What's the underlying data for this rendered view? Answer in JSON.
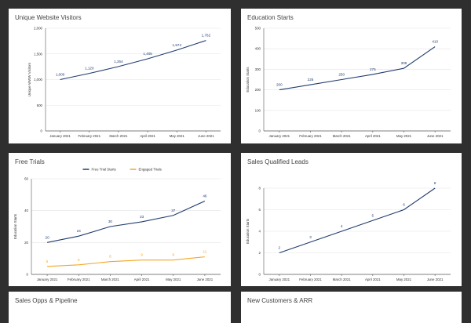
{
  "chart_data": [
    {
      "type": "line",
      "title": "Unique Website Visitors",
      "xlabel": "",
      "ylabel": "Unique WWW Visitors",
      "categories": [
        "January 2021",
        "February 2021",
        "March 2021",
        "April 2021",
        "May 2021",
        "June 2021"
      ],
      "series": [
        {
          "name": "Unique WWW Visitors",
          "values": [
            1000,
            1120,
            1254,
            1405,
            1574,
            1762
          ],
          "labels": [
            "1,000",
            "1,120",
            "1,254",
            "1,405",
            "1,574",
            "1,762"
          ],
          "color": "#1f3b6f"
        }
      ],
      "ylim": [
        0,
        2000
      ],
      "yticks": [
        0,
        500,
        1000,
        1500,
        2000
      ],
      "ytick_labels": [
        "0",
        "500",
        "1,000",
        "1,500",
        "2,000"
      ],
      "legend": false
    },
    {
      "type": "line",
      "title": "Education Starts",
      "xlabel": "",
      "ylabel": "Education Starts",
      "categories": [
        "January 2021",
        "February 2021",
        "March 2021",
        "April 2021",
        "May 2021",
        "June 2021"
      ],
      "series": [
        {
          "name": "Education Starts",
          "values": [
            200,
            225,
            250,
            275,
            305,
            410
          ],
          "labels": [
            "200",
            "225",
            "250",
            "275",
            "305",
            "410"
          ],
          "color": "#1f3b6f"
        }
      ],
      "ylim": [
        0,
        500
      ],
      "yticks": [
        0,
        100,
        200,
        300,
        400,
        500
      ],
      "ytick_labels": [
        "0",
        "100",
        "200",
        "300",
        "400",
        "500"
      ],
      "legend": false
    },
    {
      "type": "line",
      "title": "Free Trials",
      "xlabel": "",
      "ylabel": "Education Starts",
      "categories": [
        "January 2021",
        "February 2021",
        "March 2021",
        "April 2021",
        "May 2021",
        "June 2021"
      ],
      "series": [
        {
          "name": "Free Trial Starts",
          "values": [
            20,
            24,
            30,
            33,
            37,
            46
          ],
          "labels": [
            "20",
            "24",
            "30",
            "33",
            "37",
            "46"
          ],
          "color": "#1f3b6f"
        },
        {
          "name": "Engaged Trials",
          "values": [
            5,
            6,
            8,
            9,
            9,
            11
          ],
          "labels": [
            "5",
            "6",
            "8",
            "9",
            "9",
            "11"
          ],
          "color": "#f5a623"
        }
      ],
      "ylim": [
        0,
        60
      ],
      "yticks": [
        0,
        20,
        40,
        60
      ],
      "ytick_labels": [
        "0",
        "20",
        "40",
        "60"
      ],
      "legend": true
    },
    {
      "type": "line",
      "title": "Sales Qualified Leads",
      "xlabel": "",
      "ylabel": "Education Starts",
      "categories": [
        "January 2021",
        "February 2021",
        "March 2021",
        "April 2021",
        "May 2021",
        "June 2021"
      ],
      "series": [
        {
          "name": "Sales Qualified Leads",
          "values": [
            2,
            3,
            4,
            5,
            6,
            8
          ],
          "labels": [
            "2",
            "3",
            "4",
            "5",
            "6",
            "8"
          ],
          "color": "#1f3b6f"
        }
      ],
      "ylim": [
        0,
        8
      ],
      "yticks": [
        0,
        2,
        4,
        6,
        8
      ],
      "ytick_labels": [
        "0",
        "2",
        "4",
        "6",
        "8"
      ],
      "legend": false
    }
  ],
  "lower_panels": [
    {
      "title": "Sales Opps & Pipeline"
    },
    {
      "title": "New Customers & ARR"
    }
  ]
}
